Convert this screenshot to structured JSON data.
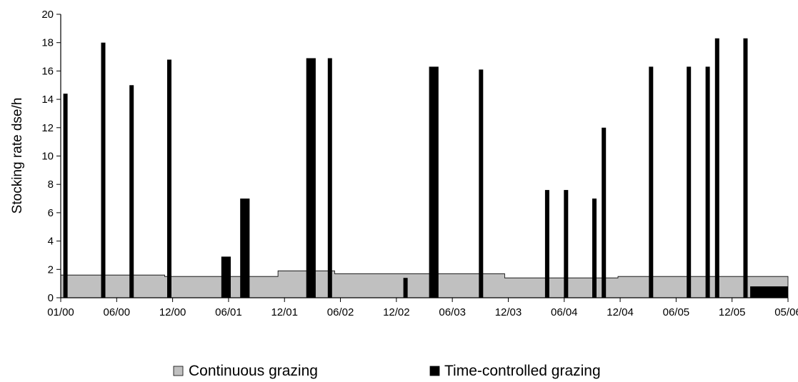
{
  "chart_data": {
    "type": "area",
    "title": "",
    "xlabel": "",
    "ylabel": "Stocking rate  dse/h",
    "ylim": [
      0,
      20
    ],
    "yticks": [
      0,
      2,
      4,
      6,
      8,
      10,
      12,
      14,
      16,
      18,
      20
    ],
    "xlim": [
      "2000-01",
      "2006-06"
    ],
    "xticks": [
      "01/00",
      "06/00",
      "12/00",
      "06/01",
      "12/01",
      "06/02",
      "12/02",
      "06/03",
      "12/03",
      "06/04",
      "12/04",
      "06/05",
      "12/05",
      "05/06"
    ],
    "grid": false,
    "legend_position": "bottom",
    "series": [
      {
        "name": "Continuous grazing",
        "color": "#c0c0c0",
        "steps": [
          {
            "from": "2000-01",
            "to": "2000-12",
            "value": 1.6
          },
          {
            "from": "2000-12",
            "to": "2001-12",
            "value": 1.5
          },
          {
            "from": "2001-12",
            "to": "2002-06",
            "value": 1.9
          },
          {
            "from": "2002-06",
            "to": "2003-12",
            "value": 1.7
          },
          {
            "from": "2003-12",
            "to": "2004-12",
            "value": 1.4
          },
          {
            "from": "2004-12",
            "to": "2006-06",
            "value": 1.5
          }
        ]
      },
      {
        "name": "Time-controlled grazing",
        "color": "#000000",
        "bars": [
          {
            "from": "2000-01",
            "to": "2000-01",
            "value": 14.4
          },
          {
            "from": "2000-05",
            "to": "2000-05",
            "value": 18.0
          },
          {
            "from": "2000-08",
            "to": "2000-08",
            "value": 15.0
          },
          {
            "from": "2000-12",
            "to": "2000-12",
            "value": 16.8
          },
          {
            "from": "2001-06",
            "to": "2001-07",
            "value": 2.9
          },
          {
            "from": "2001-08",
            "to": "2001-09",
            "value": 7.0
          },
          {
            "from": "2002-03",
            "to": "2002-04",
            "value": 16.9
          },
          {
            "from": "2002-05",
            "to": "2002-05",
            "value": 16.9
          },
          {
            "from": "2003-01",
            "to": "2003-01",
            "value": 1.4
          },
          {
            "from": "2003-04",
            "to": "2003-05",
            "value": 16.3
          },
          {
            "from": "2003-09",
            "to": "2003-09",
            "value": 16.1
          },
          {
            "from": "2004-04",
            "to": "2004-04",
            "value": 7.6
          },
          {
            "from": "2004-06",
            "to": "2004-06",
            "value": 7.6
          },
          {
            "from": "2004-09",
            "to": "2004-09",
            "value": 7.0
          },
          {
            "from": "2004-10",
            "to": "2004-10",
            "value": 12.0
          },
          {
            "from": "2005-03",
            "to": "2005-03",
            "value": 16.3
          },
          {
            "from": "2005-07",
            "to": "2005-07",
            "value": 16.3
          },
          {
            "from": "2005-09",
            "to": "2005-09",
            "value": 16.3
          },
          {
            "from": "2005-10",
            "to": "2005-10",
            "value": 18.3
          },
          {
            "from": "2006-01",
            "to": "2006-01",
            "value": 18.3
          },
          {
            "from": "2006-02",
            "to": "2006-06",
            "value": 0.8
          }
        ]
      }
    ]
  }
}
